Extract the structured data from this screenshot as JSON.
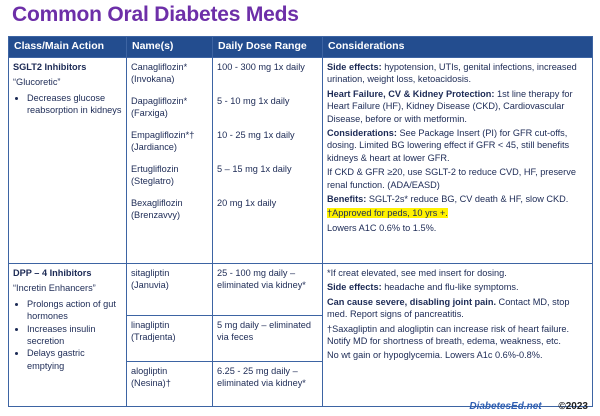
{
  "title": "Common Oral Diabetes Meds",
  "table": {
    "header": [
      "Class/Main Action",
      "Name(s)",
      "Daily Dose Range",
      "Considerations"
    ],
    "rows": [
      {
        "class": "SGLT2 Inhibitors",
        "nickname": "“Glucoretic”",
        "actions": [
          "Decreases glucose reabsorption in kidneys"
        ],
        "drugs": [
          {
            "name": "Canagliflozin*",
            "brand": "(Invokana)",
            "dose": "100 - 300 mg 1x daily"
          },
          {
            "name": "Dapagliflozin*",
            "brand": "(Farxiga)",
            "dose": "5 - 10 mg 1x daily"
          },
          {
            "name": "Empagliflozin*†",
            "brand": "(Jardiance)",
            "dose": "10 - 25 mg 1x daily"
          },
          {
            "name": "Ertugliflozin",
            "brand": "(Steglatro)",
            "dose": "5 – 15 mg 1x daily"
          },
          {
            "name": "Bexagliflozin",
            "brand": "(Brenzavvy)",
            "dose": "20 mg 1x daily"
          }
        ],
        "considerations": [
          {
            "label": "Side effects:",
            "text": " hypotension, UTIs, genital infections, increased urination, weight loss, ketoacidosis."
          },
          {
            "label": "Heart Failure, CV & Kidney Protection:",
            "text": " 1st line therapy for Heart Failure (HF), Kidney Disease (CKD), Cardiovascular Disease, before or with metformin."
          },
          {
            "label": "Considerations:",
            "text": " See Package Insert (PI) for GFR cut-offs, dosing. Limited BG lowering effect if GFR < 45, still benefits kidneys & heart at lower GFR."
          },
          {
            "text": "If CKD & GFR ≥20, use SGLT-2 to reduce CVD, HF, preserve renal function. (ADA/EASD)"
          },
          {
            "label": "Benefits:",
            "text": " SGLT-2s* reduce BG, CV death & HF, slow CKD."
          },
          {
            "text": "†Approved for peds, 10 yrs +.",
            "highlight": true
          },
          {
            "text": "Lowers A1C 0.6% to 1.5%."
          }
        ]
      },
      {
        "class": "DPP – 4 Inhibitors",
        "nickname": "“Incretin Enhancers”",
        "actions": [
          "Prolongs action of gut hormones",
          "Increases insulin secretion",
          "Delays gastric emptying"
        ],
        "drugs": [
          {
            "name": "sitagliptin",
            "brand": "(Januvia)",
            "dose": "25 - 100 mg daily – eliminated via kidney*"
          },
          {
            "name": "linagliptin",
            "brand": "(Tradjenta)",
            "dose": "5 mg daily – eliminated via feces"
          },
          {
            "name": "alogliptin",
            "brand": "(Nesina)†",
            "dose": "6.25 - 25 mg daily – eliminated via kidney*"
          }
        ],
        "considerations": [
          {
            "text": "*If creat elevated, see med insert for dosing."
          },
          {
            "label": "Side effects:",
            "text": " headache and flu-like symptoms."
          },
          {
            "label": "Can cause severe, disabling joint pain.",
            "text": " Contact MD, stop med. Report signs of pancreatitis."
          },
          {
            "text": "†Saxagliptin and alogliptin can increase risk of heart failure. Notify MD for shortness of breath, edema, weakness, etc."
          },
          {
            "text": "No wt gain or hypoglycemia.  Lowers A1c 0.6%-0.8%."
          }
        ]
      }
    ]
  },
  "footer": {
    "site": "DiabetesEd.net",
    "copyright": "©2023"
  }
}
